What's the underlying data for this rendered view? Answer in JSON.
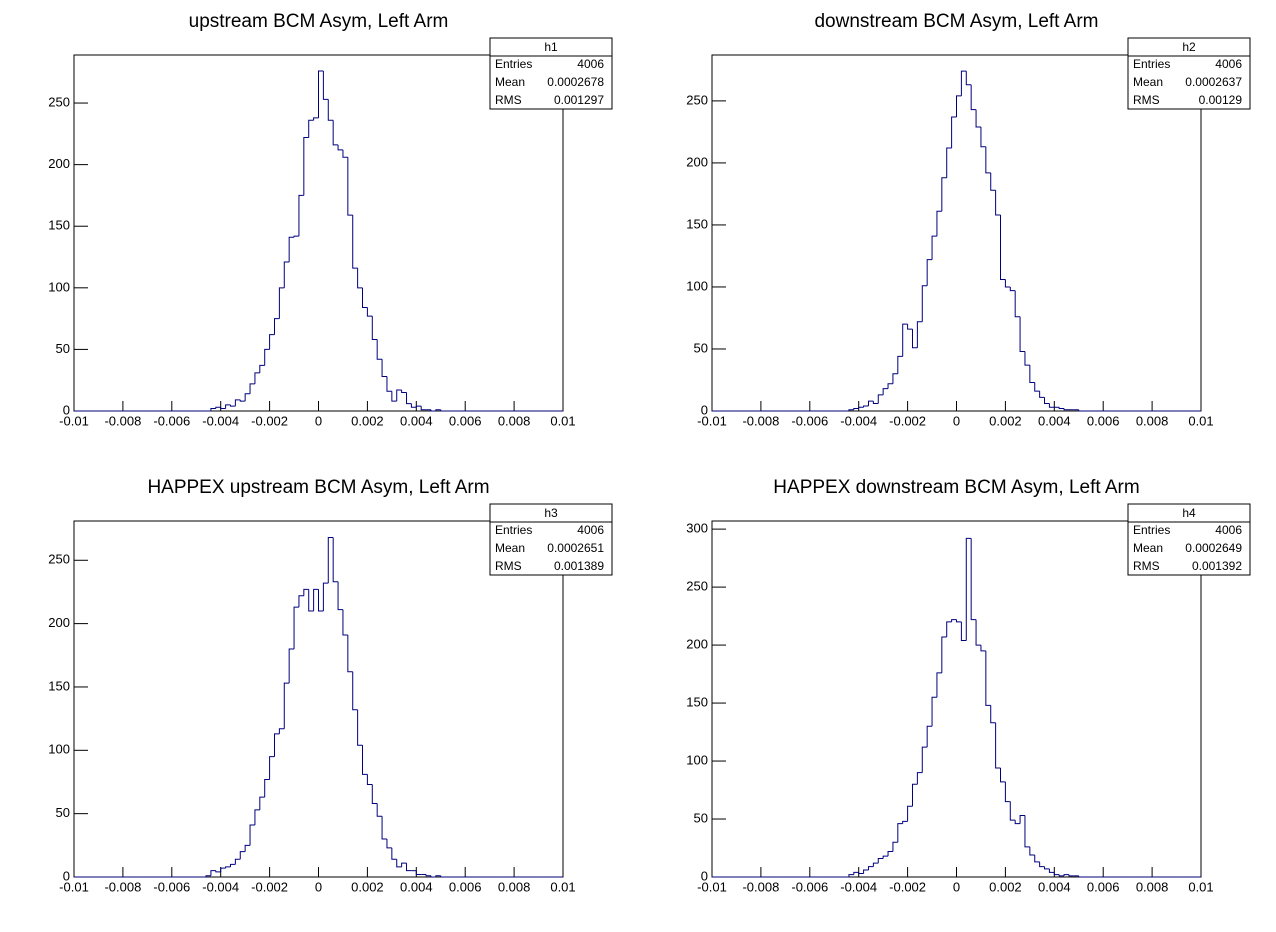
{
  "chart_data": [
    {
      "type": "histogram",
      "title": "upstream BCM Asym, Left Arm",
      "color": "#00007f",
      "bins": [
        -0.01,
        -0.0098,
        -0.0096,
        -0.0094,
        -0.0092,
        -0.009,
        -0.0088,
        -0.0086,
        -0.0084,
        -0.0082,
        -0.008,
        -0.0078,
        -0.0076,
        -0.0074,
        -0.0072,
        -0.007,
        -0.0068,
        -0.0066,
        -0.0064,
        -0.0062,
        -0.006,
        -0.0058,
        -0.0056,
        -0.0054,
        -0.0052,
        -0.005,
        -0.0048,
        -0.0046,
        -0.0044,
        -0.0042,
        -0.004,
        -0.0038,
        -0.0036,
        -0.0034,
        -0.0032,
        -0.003,
        -0.0028,
        -0.0026,
        -0.0024,
        -0.0022,
        -0.002,
        -0.0018,
        -0.0016,
        -0.0014,
        -0.0012,
        -0.001,
        -0.0008,
        -0.0006,
        -0.0004,
        -0.0002,
        0,
        0.0002,
        0.0004,
        0.0006,
        0.0008,
        0.001,
        0.0012,
        0.0014,
        0.0016,
        0.0018,
        0.002,
        0.0022,
        0.0024,
        0.0026,
        0.0028,
        0.003,
        0.0032,
        0.0034,
        0.0036,
        0.0038,
        0.004,
        0.0042,
        0.0044,
        0.0046,
        0.0048,
        0.005,
        0.0052,
        0.0054,
        0.0056,
        0.0058,
        0.006,
        0.0062,
        0.0064,
        0.0066,
        0.0068,
        0.007,
        0.0072,
        0.0074,
        0.0076,
        0.0078,
        0.008,
        0.0082,
        0.0084,
        0.0086,
        0.0088,
        0.009,
        0.0092,
        0.0094,
        0.0096,
        0.0098,
        0.01
      ],
      "values": [
        0,
        0,
        0,
        0,
        0,
        0,
        0,
        0,
        0,
        0,
        0,
        0,
        0,
        0,
        0,
        0,
        0,
        0,
        0,
        0,
        0,
        0,
        0,
        0,
        0,
        0,
        0,
        0,
        2,
        3,
        2,
        5,
        4,
        9,
        8,
        14,
        22,
        31,
        37,
        50,
        62,
        75,
        100,
        121,
        141,
        142,
        175,
        222,
        236,
        238,
        276,
        253,
        236,
        216,
        212,
        206,
        159,
        116,
        100,
        84,
        77,
        58,
        42,
        28,
        16,
        8,
        17,
        15,
        6,
        3,
        4,
        1,
        1,
        0,
        1,
        0,
        0,
        0,
        0,
        0,
        0,
        0,
        0,
        0,
        0,
        0,
        0,
        0,
        0,
        0,
        0,
        0,
        0,
        0,
        0,
        0,
        0,
        0,
        0,
        0
      ],
      "xlim": [
        -0.01,
        0.01
      ],
      "xticks": [
        -0.01,
        -0.008,
        -0.006,
        -0.004,
        -0.002,
        0,
        0.002,
        0.004,
        0.006,
        0.008,
        0.01
      ],
      "ylim": [
        0,
        289
      ],
      "yticks": [
        0,
        50,
        100,
        150,
        200,
        250
      ],
      "stats": {
        "name": "h1",
        "entries_label": "Entries",
        "entries": 4006,
        "mean_label": "Mean",
        "mean": 0.0002678,
        "rms_label": "RMS",
        "rms": 0.001297
      }
    },
    {
      "type": "histogram",
      "title": "downstream BCM Asym, Left Arm",
      "color": "#00007f",
      "bins": [
        -0.01,
        -0.0098,
        -0.0096,
        -0.0094,
        -0.0092,
        -0.009,
        -0.0088,
        -0.0086,
        -0.0084,
        -0.0082,
        -0.008,
        -0.0078,
        -0.0076,
        -0.0074,
        -0.0072,
        -0.007,
        -0.0068,
        -0.0066,
        -0.0064,
        -0.0062,
        -0.006,
        -0.0058,
        -0.0056,
        -0.0054,
        -0.0052,
        -0.005,
        -0.0048,
        -0.0046,
        -0.0044,
        -0.0042,
        -0.004,
        -0.0038,
        -0.0036,
        -0.0034,
        -0.0032,
        -0.003,
        -0.0028,
        -0.0026,
        -0.0024,
        -0.0022,
        -0.002,
        -0.0018,
        -0.0016,
        -0.0014,
        -0.0012,
        -0.001,
        -0.0008,
        -0.0006,
        -0.0004,
        -0.0002,
        0,
        0.0002,
        0.0004,
        0.0006,
        0.0008,
        0.001,
        0.0012,
        0.0014,
        0.0016,
        0.0018,
        0.002,
        0.0022,
        0.0024,
        0.0026,
        0.0028,
        0.003,
        0.0032,
        0.0034,
        0.0036,
        0.0038,
        0.004,
        0.0042,
        0.0044,
        0.0046,
        0.0048,
        0.005,
        0.0052,
        0.0054,
        0.0056,
        0.0058,
        0.006,
        0.0062,
        0.0064,
        0.0066,
        0.0068,
        0.007,
        0.0072,
        0.0074,
        0.0076,
        0.0078,
        0.008,
        0.0082,
        0.0084,
        0.0086,
        0.0088,
        0.009,
        0.0092,
        0.0094,
        0.0096,
        0.0098,
        0.01
      ],
      "values": [
        0,
        0,
        0,
        0,
        0,
        0,
        0,
        0,
        0,
        0,
        0,
        0,
        0,
        0,
        0,
        0,
        0,
        0,
        0,
        0,
        0,
        0,
        0,
        0,
        0,
        0,
        0,
        0,
        1,
        2,
        3,
        4,
        8,
        6,
        13,
        18,
        22,
        30,
        44,
        70,
        66,
        51,
        72,
        101,
        122,
        141,
        161,
        188,
        212,
        237,
        254,
        274,
        263,
        243,
        229,
        213,
        192,
        178,
        158,
        106,
        100,
        97,
        76,
        48,
        37,
        23,
        16,
        11,
        6,
        3,
        3,
        2,
        1,
        1,
        1,
        0,
        0,
        0,
        0,
        0,
        0,
        0,
        0,
        0,
        0,
        0,
        0,
        0,
        0,
        0,
        0,
        0,
        0,
        0,
        0,
        0,
        0,
        0,
        0,
        0
      ],
      "xlim": [
        -0.01,
        0.01
      ],
      "xticks": [
        -0.01,
        -0.008,
        -0.006,
        -0.004,
        -0.002,
        0,
        0.002,
        0.004,
        0.006,
        0.008,
        0.01
      ],
      "ylim": [
        0,
        287
      ],
      "yticks": [
        0,
        50,
        100,
        150,
        200,
        250
      ],
      "stats": {
        "name": "h2",
        "entries_label": "Entries",
        "entries": 4006,
        "mean_label": "Mean",
        "mean": 0.0002637,
        "rms_label": "RMS",
        "rms": 0.00129
      }
    },
    {
      "type": "histogram",
      "title": "HAPPEX upstream BCM Asym, Left Arm",
      "color": "#00007f",
      "bins": [
        -0.01,
        -0.0098,
        -0.0096,
        -0.0094,
        -0.0092,
        -0.009,
        -0.0088,
        -0.0086,
        -0.0084,
        -0.0082,
        -0.008,
        -0.0078,
        -0.0076,
        -0.0074,
        -0.0072,
        -0.007,
        -0.0068,
        -0.0066,
        -0.0064,
        -0.0062,
        -0.006,
        -0.0058,
        -0.0056,
        -0.0054,
        -0.0052,
        -0.005,
        -0.0048,
        -0.0046,
        -0.0044,
        -0.0042,
        -0.004,
        -0.0038,
        -0.0036,
        -0.0034,
        -0.0032,
        -0.003,
        -0.0028,
        -0.0026,
        -0.0024,
        -0.0022,
        -0.002,
        -0.0018,
        -0.0016,
        -0.0014,
        -0.0012,
        -0.001,
        -0.0008,
        -0.0006,
        -0.0004,
        -0.0002,
        0,
        0.0002,
        0.0004,
        0.0006,
        0.0008,
        0.001,
        0.0012,
        0.0014,
        0.0016,
        0.0018,
        0.002,
        0.0022,
        0.0024,
        0.0026,
        0.0028,
        0.003,
        0.0032,
        0.0034,
        0.0036,
        0.0038,
        0.004,
        0.0042,
        0.0044,
        0.0046,
        0.0048,
        0.005,
        0.0052,
        0.0054,
        0.0056,
        0.0058,
        0.006,
        0.0062,
        0.0064,
        0.0066,
        0.0068,
        0.007,
        0.0072,
        0.0074,
        0.0076,
        0.0078,
        0.008,
        0.0082,
        0.0084,
        0.0086,
        0.0088,
        0.009,
        0.0092,
        0.0094,
        0.0096,
        0.0098,
        0.01
      ],
      "values": [
        0,
        0,
        0,
        0,
        0,
        0,
        0,
        0,
        0,
        0,
        0,
        0,
        0,
        0,
        0,
        0,
        0,
        0,
        0,
        0,
        0,
        0,
        0,
        0,
        0,
        0,
        0,
        1,
        5,
        4,
        7,
        8,
        10,
        14,
        20,
        25,
        41,
        53,
        63,
        77,
        95,
        113,
        117,
        153,
        180,
        213,
        222,
        227,
        210,
        227,
        210,
        232,
        268,
        233,
        211,
        191,
        162,
        132,
        104,
        81,
        73,
        58,
        48,
        30,
        23,
        14,
        8,
        11,
        5,
        5,
        2,
        2,
        1,
        0,
        1,
        0,
        0,
        0,
        0,
        0,
        0,
        0,
        0,
        0,
        0,
        0,
        0,
        0,
        0,
        0,
        0,
        0,
        0,
        0,
        0,
        0,
        0,
        0,
        0,
        0
      ],
      "xlim": [
        -0.01,
        0.01
      ],
      "xticks": [
        -0.01,
        -0.008,
        -0.006,
        -0.004,
        -0.002,
        0,
        0.002,
        0.004,
        0.006,
        0.008,
        0.01
      ],
      "ylim": [
        0,
        281
      ],
      "yticks": [
        0,
        50,
        100,
        150,
        200,
        250
      ],
      "stats": {
        "name": "h3",
        "entries_label": "Entries",
        "entries": 4006,
        "mean_label": "Mean",
        "mean": 0.0002651,
        "rms_label": "RMS",
        "rms": 0.001389
      }
    },
    {
      "type": "histogram",
      "title": "HAPPEX downstream BCM Asym, Left Arm",
      "color": "#00007f",
      "bins": [
        -0.01,
        -0.0098,
        -0.0096,
        -0.0094,
        -0.0092,
        -0.009,
        -0.0088,
        -0.0086,
        -0.0084,
        -0.0082,
        -0.008,
        -0.0078,
        -0.0076,
        -0.0074,
        -0.0072,
        -0.007,
        -0.0068,
        -0.0066,
        -0.0064,
        -0.0062,
        -0.006,
        -0.0058,
        -0.0056,
        -0.0054,
        -0.0052,
        -0.005,
        -0.0048,
        -0.0046,
        -0.0044,
        -0.0042,
        -0.004,
        -0.0038,
        -0.0036,
        -0.0034,
        -0.0032,
        -0.003,
        -0.0028,
        -0.0026,
        -0.0024,
        -0.0022,
        -0.002,
        -0.0018,
        -0.0016,
        -0.0014,
        -0.0012,
        -0.001,
        -0.0008,
        -0.0006,
        -0.0004,
        -0.0002,
        0,
        0.0002,
        0.0004,
        0.0006,
        0.0008,
        0.001,
        0.0012,
        0.0014,
        0.0016,
        0.0018,
        0.002,
        0.0022,
        0.0024,
        0.0026,
        0.0028,
        0.003,
        0.0032,
        0.0034,
        0.0036,
        0.0038,
        0.004,
        0.0042,
        0.0044,
        0.0046,
        0.0048,
        0.005,
        0.0052,
        0.0054,
        0.0056,
        0.0058,
        0.006,
        0.0062,
        0.0064,
        0.0066,
        0.0068,
        0.007,
        0.0072,
        0.0074,
        0.0076,
        0.0078,
        0.008,
        0.0082,
        0.0084,
        0.0086,
        0.0088,
        0.009,
        0.0092,
        0.0094,
        0.0096,
        0.0098,
        0.01
      ],
      "values": [
        0,
        0,
        0,
        0,
        0,
        0,
        0,
        0,
        0,
        0,
        0,
        0,
        0,
        0,
        0,
        0,
        0,
        0,
        0,
        0,
        0,
        0,
        0,
        0,
        0,
        0,
        0,
        0,
        2,
        4,
        3,
        6,
        9,
        12,
        16,
        18,
        22,
        30,
        46,
        48,
        61,
        80,
        90,
        112,
        130,
        155,
        176,
        207,
        220,
        222,
        220,
        204,
        292,
        222,
        200,
        195,
        148,
        133,
        94,
        82,
        65,
        49,
        46,
        53,
        26,
        19,
        13,
        9,
        7,
        4,
        2,
        1,
        2,
        1,
        1,
        0,
        0,
        0,
        0,
        0,
        0,
        0,
        0,
        0,
        0,
        0,
        0,
        0,
        0,
        0,
        0,
        0,
        0,
        0,
        0,
        0,
        0,
        0,
        0,
        0
      ],
      "xlim": [
        -0.01,
        0.01
      ],
      "xticks": [
        -0.01,
        -0.008,
        -0.006,
        -0.004,
        -0.002,
        0,
        0.002,
        0.004,
        0.006,
        0.008,
        0.01
      ],
      "ylim": [
        0,
        307
      ],
      "yticks": [
        0,
        50,
        100,
        150,
        200,
        250,
        300
      ],
      "stats": {
        "name": "h4",
        "entries_label": "Entries",
        "entries": 4006,
        "mean_label": "Mean",
        "mean": 0.0002649,
        "rms_label": "RMS",
        "rms": 0.001392
      }
    }
  ]
}
